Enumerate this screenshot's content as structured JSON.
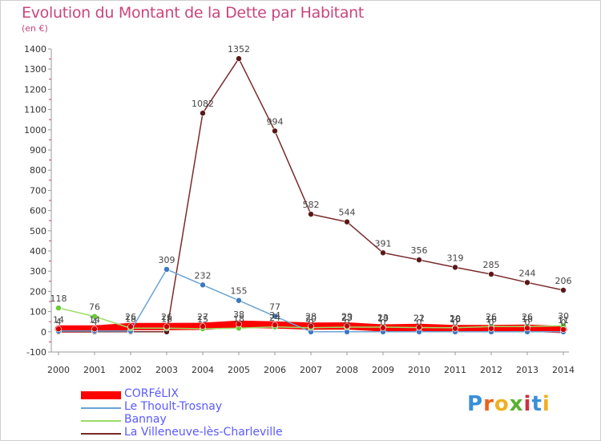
{
  "header": {
    "title": "Evolution du Montant de la Dette par Habitant",
    "subtitle": "(en €)"
  },
  "logo": {
    "text": "Proxiti",
    "colors": [
      "#3a8fd8",
      "#e8621a",
      "#f0b020",
      "#5ab030",
      "#d03040",
      "#3a8fd8",
      "#f0b020"
    ]
  },
  "chart_data": {
    "type": "line",
    "x": [
      "2000",
      "2001",
      "2002",
      "2003",
      "2004",
      "2005",
      "2006",
      "2007",
      "2008",
      "2009",
      "2010",
      "2011",
      "2012",
      "2013",
      "2014"
    ],
    "ylim": [
      -100,
      1400
    ],
    "yticks": [
      "-100",
      "0",
      "100",
      "200",
      "300",
      "400",
      "500",
      "600",
      "700",
      "800",
      "900",
      "1000",
      "1100",
      "1200",
      "1300",
      "1400"
    ],
    "grid": false,
    "legend_position": "bottom-left",
    "series": [
      {
        "name": "CORFéLIX",
        "color": "#ff0000",
        "marker": "#cc0000",
        "values": [
          14,
          14,
          26,
          26,
          27,
          38,
          34,
          28,
          29,
          19,
          22,
          16,
          16,
          18,
          11
        ],
        "labels": [
          "14",
          "14",
          "26",
          "26",
          "27",
          "38",
          "34",
          "28",
          "29",
          "19",
          "22",
          "16",
          "16",
          "18",
          "11"
        ]
      },
      {
        "name": "Le Thoult-Trosnay",
        "color": "#6aa3d5",
        "marker": "#3a78c0",
        "values": [
          4,
          4,
          4,
          309,
          232,
          155,
          77,
          0,
          0,
          0,
          0,
          0,
          0,
          0,
          0
        ],
        "labels": [
          "4",
          "4",
          "",
          "309",
          "232",
          "155",
          "77",
          "0",
          "0",
          "0",
          "0",
          "0",
          "0",
          "0",
          "0"
        ]
      },
      {
        "name": "Bannay",
        "color": "#99dd66",
        "marker": "#66cc33",
        "values": [
          118,
          76,
          18,
          18,
          15,
          18,
          24,
          20,
          23,
          23,
          21,
          20,
          26,
          26,
          30
        ],
        "labels": [
          "118",
          "76",
          "18",
          "18",
          "15",
          "18",
          "24",
          "20",
          "23",
          "23",
          "21",
          "20",
          "26",
          "26",
          "30"
        ]
      },
      {
        "name": "La Villeneuve-lès-Charleville",
        "color": "#7a2b2b",
        "marker": "#5a1818",
        "values": [
          0,
          0,
          0,
          0,
          1082,
          1352,
          994,
          582,
          544,
          391,
          356,
          319,
          285,
          244,
          206
        ],
        "labels": [
          "",
          "",
          "",
          "",
          "1082",
          "1352",
          "994",
          "582",
          "544",
          "391",
          "356",
          "319",
          "285",
          "244",
          "206"
        ]
      }
    ]
  }
}
